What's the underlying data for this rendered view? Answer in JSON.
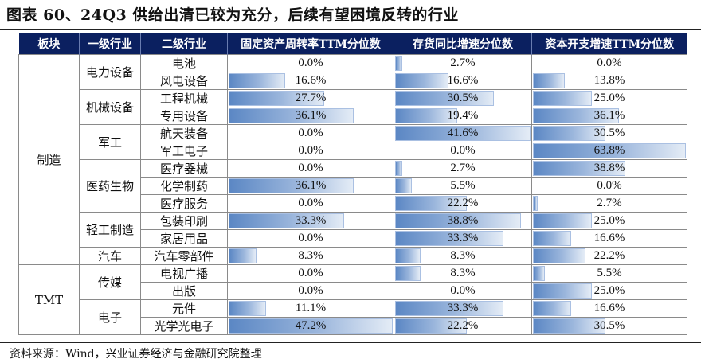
{
  "title": "图表 60、24Q3 供给出清已较为充分，后续有望困境反转的行业",
  "source": "资料来源：Wind，兴业证券经济与金融研究院整理",
  "colors": {
    "header_bg": "#0b2060",
    "bar_dark": "#5b87c4",
    "bar_light": "#e4ecf6"
  },
  "table": {
    "headers": [
      "板块",
      "一级行业",
      "二级行业",
      "固定资产周转率TTM分位数",
      "存货同比增速分位数",
      "资本开支增速TTM分位数"
    ],
    "rows": [
      {
        "sector": "制造",
        "l1": "电力设备",
        "l2": "电池",
        "fa": "0.0%",
        "inv": "2.7%",
        "capex": "0.0%"
      },
      {
        "sector": "制造",
        "l1": "电力设备",
        "l2": "风电设备",
        "fa": "16.6%",
        "inv": "16.6%",
        "capex": "13.8%"
      },
      {
        "sector": "制造",
        "l1": "机械设备",
        "l2": "工程机械",
        "fa": "27.7%",
        "inv": "30.5%",
        "capex": "25.0%"
      },
      {
        "sector": "制造",
        "l1": "机械设备",
        "l2": "专用设备",
        "fa": "36.1%",
        "inv": "19.4%",
        "capex": "36.1%"
      },
      {
        "sector": "制造",
        "l1": "军工",
        "l2": "航天装备",
        "fa": "0.0%",
        "inv": "41.6%",
        "capex": "30.5%"
      },
      {
        "sector": "制造",
        "l1": "军工",
        "l2": "军工电子",
        "fa": "0.0%",
        "inv": "0.0%",
        "capex": "63.8%"
      },
      {
        "sector": "制造",
        "l1": "医药生物",
        "l2": "医疗器械",
        "fa": "0.0%",
        "inv": "2.7%",
        "capex": "38.8%"
      },
      {
        "sector": "制造",
        "l1": "医药生物",
        "l2": "化学制药",
        "fa": "36.1%",
        "inv": "5.5%",
        "capex": "0.0%"
      },
      {
        "sector": "制造",
        "l1": "医药生物",
        "l2": "医疗服务",
        "fa": "0.0%",
        "inv": "22.2%",
        "capex": "2.7%"
      },
      {
        "sector": "制造",
        "l1": "轻工制造",
        "l2": "包装印刷",
        "fa": "33.3%",
        "inv": "38.8%",
        "capex": "25.0%"
      },
      {
        "sector": "制造",
        "l1": "轻工制造",
        "l2": "家居用品",
        "fa": "0.0%",
        "inv": "33.3%",
        "capex": "16.6%"
      },
      {
        "sector": "制造",
        "l1": "汽车",
        "l2": "汽车零部件",
        "fa": "8.3%",
        "inv": "8.3%",
        "capex": "22.2%"
      },
      {
        "sector": "TMT",
        "l1": "传媒",
        "l2": "电视广播",
        "fa": "0.0%",
        "inv": "8.3%",
        "capex": "5.5%"
      },
      {
        "sector": "TMT",
        "l1": "传媒",
        "l2": "出版",
        "fa": "0.0%",
        "inv": "0.0%",
        "capex": "25.0%"
      },
      {
        "sector": "TMT",
        "l1": "电子",
        "l2": "元件",
        "fa": "11.1%",
        "inv": "33.3%",
        "capex": "16.6%"
      },
      {
        "sector": "TMT",
        "l1": "电子",
        "l2": "光学光电子",
        "fa": "47.2%",
        "inv": "22.2%",
        "capex": "30.5%"
      }
    ]
  }
}
